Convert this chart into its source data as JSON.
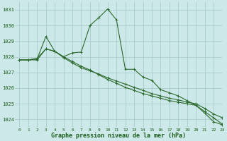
{
  "title": "Graphe pression niveau de la mer (hPa)",
  "bg_color": "#cce8e8",
  "grid_color": "#aacccc",
  "line_color": "#2d6a2d",
  "xlim": [
    -0.5,
    23
  ],
  "ylim": [
    1023.5,
    1031.5
  ],
  "yticks": [
    1024,
    1025,
    1026,
    1027,
    1028,
    1029,
    1030,
    1031
  ],
  "xticks": [
    0,
    1,
    2,
    3,
    4,
    5,
    6,
    7,
    8,
    9,
    10,
    11,
    12,
    13,
    14,
    15,
    16,
    17,
    18,
    19,
    20,
    21,
    22,
    23
  ],
  "series1_x": [
    0,
    1,
    2,
    3,
    4,
    5,
    6,
    7,
    8,
    9,
    10,
    11,
    12,
    13,
    14,
    15,
    16,
    17,
    18,
    19,
    20,
    21,
    22,
    23
  ],
  "series1_y": [
    1027.8,
    1027.8,
    1027.85,
    1029.3,
    1028.35,
    1028.0,
    1028.25,
    1028.3,
    1030.0,
    1030.5,
    1031.05,
    1030.35,
    1027.2,
    1027.2,
    1026.7,
    1026.5,
    1025.9,
    1025.7,
    1025.5,
    1025.2,
    1024.9,
    1024.4,
    1023.85,
    1023.65
  ],
  "series2_x": [
    0,
    1,
    2,
    3,
    4,
    5,
    6,
    7,
    8,
    9,
    10,
    11,
    12,
    13,
    14,
    15,
    16,
    17,
    18,
    19,
    20,
    21,
    22,
    23
  ],
  "series2_y": [
    1027.8,
    1027.8,
    1027.9,
    1028.5,
    1028.35,
    1028.0,
    1027.7,
    1027.4,
    1027.15,
    1026.85,
    1026.55,
    1026.3,
    1026.05,
    1025.85,
    1025.65,
    1025.5,
    1025.35,
    1025.2,
    1025.1,
    1025.0,
    1024.9,
    1024.5,
    1024.1,
    1023.7
  ],
  "series3_x": [
    0,
    1,
    2,
    3,
    4,
    5,
    6,
    7,
    8,
    9,
    10,
    11,
    12,
    13,
    14,
    15,
    16,
    17,
    18,
    19,
    20,
    21,
    22,
    23
  ],
  "series3_y": [
    1027.8,
    1027.8,
    1027.8,
    1028.5,
    1028.35,
    1027.95,
    1027.6,
    1027.3,
    1027.1,
    1026.9,
    1026.65,
    1026.45,
    1026.25,
    1026.05,
    1025.85,
    1025.65,
    1025.5,
    1025.35,
    1025.25,
    1025.1,
    1025.0,
    1024.7,
    1024.35,
    1024.1
  ]
}
